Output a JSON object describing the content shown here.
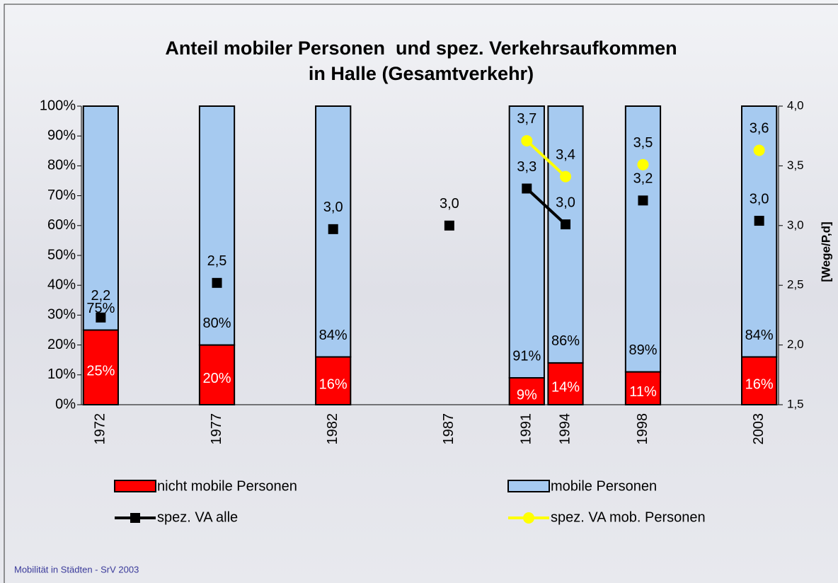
{
  "chart_data": {
    "type": "bar",
    "title": [
      "Anteil mobiler Personen  und spez. Verkehrsaufkommen",
      "in Halle (Gesamtverkehr)"
    ],
    "categories": [
      "1972",
      null,
      null,
      "1977",
      null,
      null,
      "1982",
      null,
      null,
      "1987",
      null,
      "1991",
      "1994",
      null,
      "1998",
      null,
      null,
      "2003"
    ],
    "y2label": "[Wege/P,d]",
    "ylim": [
      0,
      100
    ],
    "yticks": [
      {
        "value": 0,
        "label": "0%"
      },
      {
        "value": 10,
        "label": "10%"
      },
      {
        "value": 20,
        "label": "20%"
      },
      {
        "value": 30,
        "label": "30%"
      },
      {
        "value": 40,
        "label": "40%"
      },
      {
        "value": 50,
        "label": "50%"
      },
      {
        "value": 60,
        "label": "60%"
      },
      {
        "value": 70,
        "label": "70%"
      },
      {
        "value": 80,
        "label": "80%"
      },
      {
        "value": 90,
        "label": "90%"
      },
      {
        "value": 100,
        "label": "100%"
      }
    ],
    "y2lim": [
      1.5,
      4.0
    ],
    "y2ticks": [
      {
        "value": 1.5,
        "label": "1,5"
      },
      {
        "value": 2.0,
        "label": "2,0"
      },
      {
        "value": 2.5,
        "label": "2,5"
      },
      {
        "value": 3.0,
        "label": "3,0"
      },
      {
        "value": 3.5,
        "label": "3,5"
      },
      {
        "value": 4.0,
        "label": "4,0"
      }
    ],
    "series": [
      {
        "name": "nicht mobile Personen",
        "type": "bar",
        "color": "#ff0000",
        "values": [
          25,
          null,
          null,
          20,
          null,
          null,
          16,
          null,
          null,
          null,
          null,
          9,
          14,
          null,
          11,
          null,
          null,
          16
        ],
        "value_labels": [
          "25%",
          null,
          null,
          "20%",
          null,
          null,
          "16%",
          null,
          null,
          null,
          null,
          "9%",
          "14%",
          null,
          "11%",
          null,
          null,
          "16%"
        ]
      },
      {
        "name": "mobile Personen",
        "type": "bar",
        "color": "#a6caf0",
        "values": [
          75,
          null,
          null,
          80,
          null,
          null,
          84,
          null,
          null,
          null,
          null,
          91,
          86,
          null,
          89,
          null,
          null,
          84
        ],
        "value_labels": [
          "75%",
          null,
          null,
          "80%",
          null,
          null,
          "84%",
          null,
          null,
          null,
          null,
          "91%",
          "86%",
          null,
          "89%",
          null,
          null,
          "84%"
        ]
      },
      {
        "name": "spez. VA alle",
        "type": "line",
        "axis": "y2",
        "color": "#000000",
        "marker": "square",
        "values": [
          2.23,
          null,
          null,
          2.52,
          null,
          null,
          2.97,
          null,
          null,
          3.0,
          null,
          3.31,
          3.01,
          null,
          3.21,
          null,
          null,
          3.04
        ],
        "value_labels": [
          "2,2",
          null,
          null,
          "2,5",
          null,
          null,
          "3,0",
          null,
          null,
          "3,0",
          null,
          "3,3",
          "3,0",
          null,
          "3,2",
          null,
          null,
          "3,0"
        ]
      },
      {
        "name": "spez. VA mob. Personen",
        "type": "line",
        "axis": "y2",
        "color": "#ffff00",
        "marker": "circle",
        "values": [
          null,
          null,
          null,
          null,
          null,
          null,
          null,
          null,
          null,
          null,
          null,
          3.71,
          3.41,
          null,
          3.51,
          null,
          null,
          3.63
        ],
        "value_labels": [
          null,
          null,
          null,
          null,
          null,
          null,
          null,
          null,
          null,
          null,
          null,
          "3,7",
          "3,4",
          null,
          "3,5",
          null,
          null,
          "3,6"
        ]
      }
    ],
    "grid": false
  },
  "footer": "Mobilität in Städten - SrV 2003"
}
